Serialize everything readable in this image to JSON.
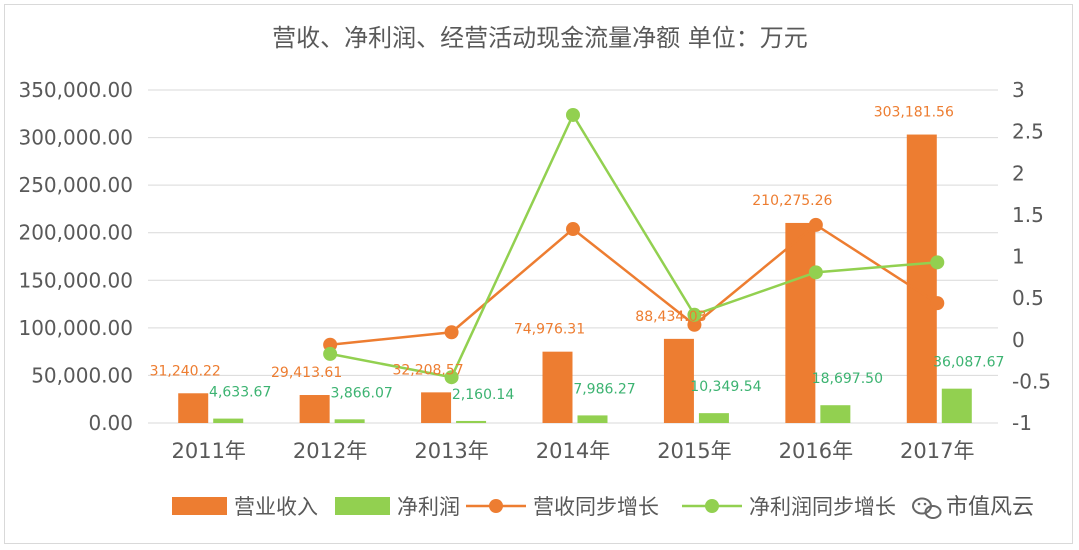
{
  "chart_data": {
    "type": "bar",
    "title": "营收、净利润、经营活动现金流量净额    单位：万元",
    "categories": [
      "2011年",
      "2012年",
      "2013年",
      "2014年",
      "2015年",
      "2016年",
      "2017年"
    ],
    "y_left": {
      "ylim": [
        0,
        350000
      ],
      "ticks": [
        "0.00",
        "50,000.00",
        "100,000.00",
        "150,000.00",
        "200,000.00",
        "250,000.00",
        "300,000.00",
        "350,000.00"
      ]
    },
    "y_right": {
      "ylim": [
        -1,
        3
      ],
      "ticks": [
        "-1",
        "-0.5",
        "0",
        "0.5",
        "1",
        "1.5",
        "2",
        "2.5",
        "3"
      ]
    },
    "series": [
      {
        "name": "营业收入",
        "kind": "bar",
        "axis": "left",
        "color": "#ed7d31",
        "values": [
          31240.22,
          29413.61,
          32208.57,
          74976.31,
          88434.03,
          210275.26,
          303181.56
        ],
        "labels": [
          "31,240.22",
          "29,413.61",
          "32,208.57",
          "74,976.31",
          "88,434.03",
          "210,275.26",
          "303,181.56"
        ]
      },
      {
        "name": "净利润",
        "kind": "bar",
        "axis": "left",
        "color": "#92d050",
        "values": [
          4633.67,
          3866.07,
          2160.14,
          7986.27,
          10349.54,
          18697.5,
          36087.67
        ],
        "labels": [
          "4,633.67",
          "3,866.07",
          "2,160.14",
          "7,986.27",
          "10,349.54",
          "18,697.50",
          "36,087.67"
        ]
      },
      {
        "name": "营收同步增长",
        "kind": "line",
        "axis": "right",
        "color": "#ed7d31",
        "values": [
          null,
          -0.06,
          0.09,
          1.33,
          0.18,
          1.38,
          0.44
        ]
      },
      {
        "name": "净利润同步增长",
        "kind": "line",
        "axis": "right",
        "color": "#92d050",
        "values": [
          null,
          -0.17,
          -0.45,
          2.7,
          0.3,
          0.81,
          0.93
        ]
      }
    ],
    "legend": "bottom",
    "grid": true
  },
  "watermark": {
    "text": "市值风云",
    "icon": "wechat-icon"
  }
}
